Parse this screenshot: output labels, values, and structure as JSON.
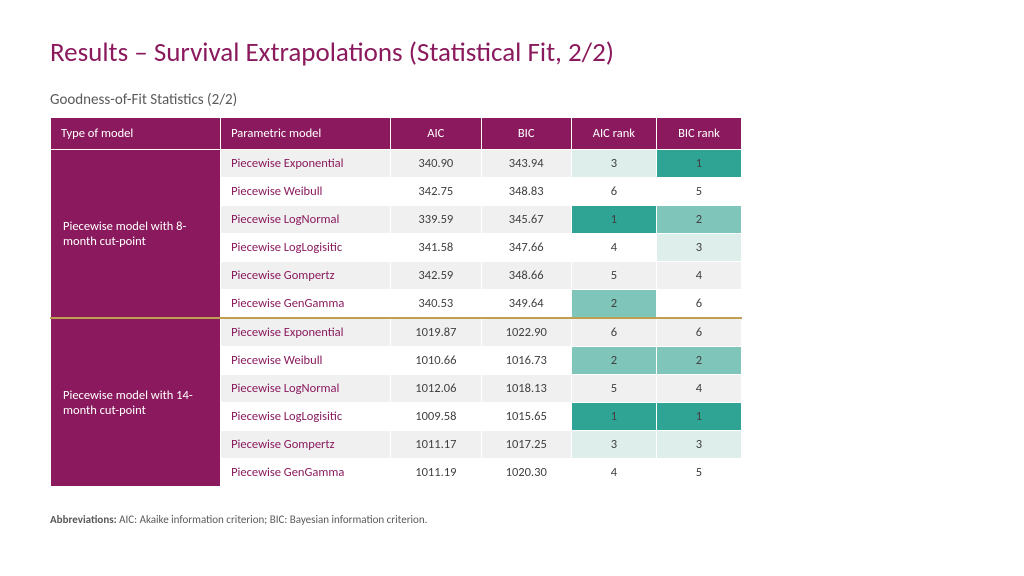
{
  "colors": {
    "title": "#8a1a5d",
    "header_bg": "#8a1a5d",
    "type_col_bg": "#8a1a5d",
    "param_text": "#8a1a5d",
    "row_alt_a": "#f0f0f0",
    "row_alt_b": "#ffffff",
    "rank1": "#2fa394",
    "rank2": "#7fc5ba",
    "rank3": "#ddeeeb"
  },
  "title": "Results – Survival Extrapolations (Statistical Fit, 2/2)",
  "subtitle": "Goodness-of-Fit Statistics (2/2)",
  "columns": [
    "Type of model",
    "Parametric model",
    "AIC",
    "BIC",
    "AIC rank",
    "BIC rank"
  ],
  "groups": [
    {
      "type_label": "Piecewise model with 8-month cut-point",
      "rows": [
        {
          "param": "Piecewise Exponential",
          "aic": "340.90",
          "bic": "343.94",
          "aic_rank": 3,
          "bic_rank": 1
        },
        {
          "param": "Piecewise Weibull",
          "aic": "342.75",
          "bic": "348.83",
          "aic_rank": 6,
          "bic_rank": 5
        },
        {
          "param": "Piecewise LogNormal",
          "aic": "339.59",
          "bic": "345.67",
          "aic_rank": 1,
          "bic_rank": 2
        },
        {
          "param": "Piecewise LogLogisitic",
          "aic": "341.58",
          "bic": "347.66",
          "aic_rank": 4,
          "bic_rank": 3
        },
        {
          "param": "Piecewise Gompertz",
          "aic": "342.59",
          "bic": "348.66",
          "aic_rank": 5,
          "bic_rank": 4
        },
        {
          "param": "Piecewise GenGamma",
          "aic": "340.53",
          "bic": "349.64",
          "aic_rank": 2,
          "bic_rank": 6
        }
      ]
    },
    {
      "type_label": "Piecewise model with 14-month cut-point",
      "rows": [
        {
          "param": "Piecewise Exponential",
          "aic": "1019.87",
          "bic": "1022.90",
          "aic_rank": 6,
          "bic_rank": 6
        },
        {
          "param": "Piecewise Weibull",
          "aic": "1010.66",
          "bic": "1016.73",
          "aic_rank": 2,
          "bic_rank": 2
        },
        {
          "param": "Piecewise LogNormal",
          "aic": "1012.06",
          "bic": "1018.13",
          "aic_rank": 5,
          "bic_rank": 4
        },
        {
          "param": "Piecewise LogLogisitic",
          "aic": "1009.58",
          "bic": "1015.65",
          "aic_rank": 1,
          "bic_rank": 1
        },
        {
          "param": "Piecewise Gompertz",
          "aic": "1011.17",
          "bic": "1017.25",
          "aic_rank": 3,
          "bic_rank": 3
        },
        {
          "param": "Piecewise GenGamma",
          "aic": "1011.19",
          "bic": "1020.30",
          "aic_rank": 4,
          "bic_rank": 5
        }
      ]
    }
  ],
  "abbrev_label": "Abbreviations:",
  "abbrev_text": " AIC: Akaike information criterion; BIC: Bayesian information criterion."
}
